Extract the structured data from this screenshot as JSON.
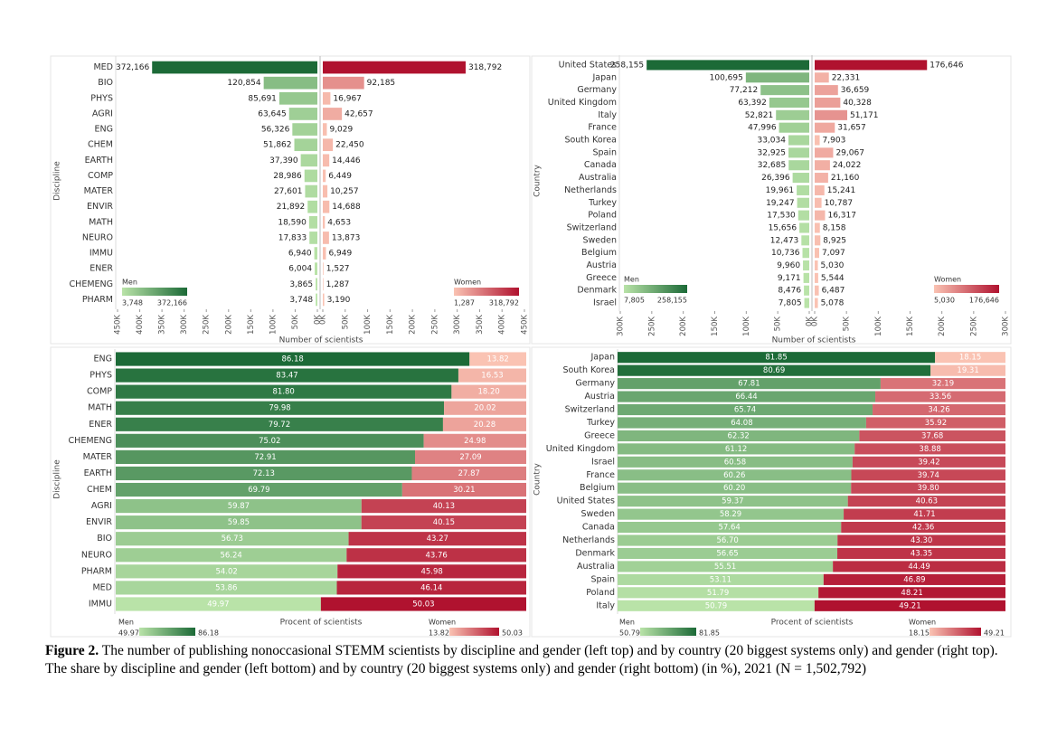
{
  "chart_data": [
    {
      "type": "butterfly",
      "y_label": "Discipline",
      "x_label": "Number of scientists",
      "categories": [
        "MED",
        "BIO",
        "PHYS",
        "AGRI",
        "ENG",
        "CHEM",
        "EARTH",
        "COMP",
        "MATER",
        "ENVIR",
        "MATH",
        "NEURO",
        "IMMU",
        "ENER",
        "CHEMENG",
        "PHARM"
      ],
      "series": [
        {
          "name": "Men",
          "colors": [
            "#b9e3a8",
            "#1c6a37"
          ],
          "values": [
            372166,
            120854,
            85691,
            63645,
            56326,
            51862,
            37390,
            28986,
            27601,
            21892,
            18590,
            17833,
            6940,
            6004,
            3865,
            3748
          ],
          "value_labels": [
            "372,166",
            "120,854",
            "85,691",
            "63,645",
            "56,326",
            "51,862",
            "37,390",
            "28,986",
            "27,601",
            "21,892",
            "18,590",
            "17,833",
            "6,940",
            "6,004",
            "3,865",
            "3,748"
          ],
          "color_range": [
            {
              "value": 3748,
              "label": "3,748"
            },
            {
              "value": 372166,
              "label": "372,166"
            }
          ]
        },
        {
          "name": "Women",
          "colors": [
            "#fac3b3",
            "#b0122f"
          ],
          "values": [
            318792,
            92185,
            16967,
            42657,
            9029,
            22450,
            14446,
            6449,
            10257,
            14688,
            4653,
            13873,
            6949,
            1527,
            1287,
            3190
          ],
          "value_labels": [
            "318,792",
            "92,185",
            "16,967",
            "42,657",
            "9,029",
            "22,450",
            "14,446",
            "6,449",
            "10,257",
            "14,688",
            "4,653",
            "13,873",
            "6,949",
            "1,527",
            "1,287",
            "3,190"
          ],
          "color_range": [
            {
              "value": 1287,
              "label": "1,287"
            },
            {
              "value": 318792,
              "label": "318,792"
            }
          ]
        }
      ],
      "xlim": [
        0,
        450000
      ],
      "xticks": [
        {
          "value": 0,
          "label": "0K"
        },
        {
          "value": 50000,
          "label": "50K"
        },
        {
          "value": 100000,
          "label": "100K"
        },
        {
          "value": 150000,
          "label": "150K"
        },
        {
          "value": 200000,
          "label": "200K"
        },
        {
          "value": 250000,
          "label": "250K"
        },
        {
          "value": 300000,
          "label": "300K"
        },
        {
          "value": 350000,
          "label": "350K"
        },
        {
          "value": 400000,
          "label": "400K"
        },
        {
          "value": 450000,
          "label": "450K"
        }
      ]
    },
    {
      "type": "butterfly",
      "y_label": "Country",
      "x_label": "Number of scientists",
      "categories": [
        "United States",
        "Japan",
        "Germany",
        "United Kingdom",
        "Italy",
        "France",
        "South Korea",
        "Spain",
        "Canada",
        "Australia",
        "Netherlands",
        "Turkey",
        "Poland",
        "Switzerland",
        "Sweden",
        "Belgium",
        "Austria",
        "Greece",
        "Denmark",
        "Israel"
      ],
      "series": [
        {
          "name": "Men",
          "colors": [
            "#b9e3a8",
            "#1c6a37"
          ],
          "values": [
            258155,
            100695,
            77212,
            63392,
            52821,
            47996,
            33034,
            32925,
            32685,
            26396,
            19961,
            19247,
            17530,
            15656,
            12473,
            10736,
            9960,
            9171,
            8476,
            7805
          ],
          "value_labels": [
            "258,155",
            "100,695",
            "77,212",
            "63,392",
            "52,821",
            "47,996",
            "33,034",
            "32,925",
            "32,685",
            "26,396",
            "19,961",
            "19,247",
            "17,530",
            "15,656",
            "12,473",
            "10,736",
            "9,960",
            "9,171",
            "8,476",
            "7,805"
          ],
          "color_range": [
            {
              "value": 7805,
              "label": "7,805"
            },
            {
              "value": 258155,
              "label": "258,155"
            }
          ]
        },
        {
          "name": "Women",
          "colors": [
            "#fac3b3",
            "#b0122f"
          ],
          "values": [
            176646,
            22331,
            36659,
            40328,
            51171,
            31657,
            7903,
            29067,
            24022,
            21160,
            15241,
            10787,
            16317,
            8158,
            8925,
            7097,
            5030,
            5544,
            6487,
            5078
          ],
          "value_labels": [
            "176,646",
            "22,331",
            "36,659",
            "40,328",
            "51,171",
            "31,657",
            "7,903",
            "29,067",
            "24,022",
            "21,160",
            "15,241",
            "10,787",
            "16,317",
            "8,158",
            "8,925",
            "7,097",
            "5,030",
            "5,544",
            "6,487",
            "5,078"
          ],
          "color_range": [
            {
              "value": 5030,
              "label": "5,030"
            },
            {
              "value": 176646,
              "label": "176,646"
            }
          ]
        }
      ],
      "xlim": [
        0,
        300000
      ],
      "xticks": [
        {
          "value": 0,
          "label": "0K"
        },
        {
          "value": 50000,
          "label": "50K"
        },
        {
          "value": 100000,
          "label": "100K"
        },
        {
          "value": 150000,
          "label": "150K"
        },
        {
          "value": 200000,
          "label": "200K"
        },
        {
          "value": 250000,
          "label": "250K"
        },
        {
          "value": 300000,
          "label": "300K"
        }
      ]
    },
    {
      "type": "stacked",
      "y_label": "Discipline",
      "x_label": "Procent of scientists",
      "categories": [
        "ENG",
        "PHYS",
        "COMP",
        "MATH",
        "ENER",
        "CHEMENG",
        "MATER",
        "EARTH",
        "CHEM",
        "AGRI",
        "ENVIR",
        "BIO",
        "NEURO",
        "PHARM",
        "MED",
        "IMMU"
      ],
      "series": [
        {
          "name": "Men",
          "colors": [
            "#b9e3a8",
            "#1c6a37"
          ],
          "values": [
            86.18,
            83.47,
            81.8,
            79.98,
            79.72,
            75.02,
            72.91,
            72.13,
            69.79,
            59.87,
            59.85,
            56.73,
            56.24,
            54.02,
            53.86,
            49.97
          ],
          "value_labels": [
            "86.18",
            "83.47",
            "81.80",
            "79.98",
            "79.72",
            "75.02",
            "72.91",
            "72.13",
            "69.79",
            "59.87",
            "59.85",
            "56.73",
            "56.24",
            "54.02",
            "53.86",
            "49.97"
          ],
          "color_range": [
            {
              "value": 49.97,
              "label": "49.97"
            },
            {
              "value": 86.18,
              "label": "86.18"
            }
          ]
        },
        {
          "name": "Women",
          "colors": [
            "#fac3b3",
            "#b0122f"
          ],
          "values": [
            13.82,
            16.53,
            18.2,
            20.02,
            20.28,
            24.98,
            27.09,
            27.87,
            30.21,
            40.13,
            40.15,
            43.27,
            43.76,
            45.98,
            46.14,
            50.03
          ],
          "value_labels": [
            "13.82",
            "16.53",
            "18.20",
            "20.02",
            "20.28",
            "24.98",
            "27.09",
            "27.87",
            "30.21",
            "40.13",
            "40.15",
            "43.27",
            "43.76",
            "45.98",
            "46.14",
            "50.03"
          ],
          "color_range": [
            {
              "value": 13.82,
              "label": "13.82"
            },
            {
              "value": 50.03,
              "label": "50.03"
            }
          ]
        }
      ],
      "xlim": [
        0,
        100
      ]
    },
    {
      "type": "stacked",
      "y_label": "Country",
      "x_label": "Procent of scientists",
      "categories": [
        "Japan",
        "South Korea",
        "Germany",
        "Austria",
        "Switzerland",
        "Turkey",
        "Greece",
        "United Kingdom",
        "Israel",
        "France",
        "Belgium",
        "United States",
        "Sweden",
        "Canada",
        "Netherlands",
        "Denmark",
        "Australia",
        "Spain",
        "Poland",
        "Italy"
      ],
      "series": [
        {
          "name": "Men",
          "colors": [
            "#b9e3a8",
            "#1c6a37"
          ],
          "values": [
            81.85,
            80.69,
            67.81,
            66.44,
            65.74,
            64.08,
            62.32,
            61.12,
            60.58,
            60.26,
            60.2,
            59.37,
            58.29,
            57.64,
            56.7,
            56.65,
            55.51,
            53.11,
            51.79,
            50.79
          ],
          "value_labels": [
            "81.85",
            "80.69",
            "67.81",
            "66.44",
            "65.74",
            "64.08",
            "62.32",
            "61.12",
            "60.58",
            "60.26",
            "60.20",
            "59.37",
            "58.29",
            "57.64",
            "56.70",
            "56.65",
            "55.51",
            "53.11",
            "51.79",
            "50.79"
          ],
          "color_range": [
            {
              "value": 50.79,
              "label": "50.79"
            },
            {
              "value": 81.85,
              "label": "81.85"
            }
          ]
        },
        {
          "name": "Women",
          "colors": [
            "#fac3b3",
            "#b0122f"
          ],
          "values": [
            18.15,
            19.31,
            32.19,
            33.56,
            34.26,
            35.92,
            37.68,
            38.88,
            39.42,
            39.74,
            39.8,
            40.63,
            41.71,
            42.36,
            43.3,
            43.35,
            44.49,
            46.89,
            48.21,
            49.21
          ],
          "value_labels": [
            "18.15",
            "19.31",
            "32.19",
            "33.56",
            "34.26",
            "35.92",
            "37.68",
            "38.88",
            "39.42",
            "39.74",
            "39.80",
            "40.63",
            "41.71",
            "42.36",
            "43.30",
            "43.35",
            "44.49",
            "46.89",
            "48.21",
            "49.21"
          ],
          "color_range": [
            {
              "value": 18.15,
              "label": "18.15"
            },
            {
              "value": 49.21,
              "label": "49.21"
            }
          ]
        }
      ],
      "xlim": [
        0,
        100
      ]
    }
  ],
  "caption": {
    "label": "Figure 2.",
    "text": "The number of publishing nonoccasional STEMM scientists by discipline and gender (left top) and by country (20 biggest systems only) and gender (right top). The share by discipline and gender (left bottom) and by country (20 biggest systems only) and gender (right bottom) (in %), 2021 (N = 1,502,792)"
  }
}
